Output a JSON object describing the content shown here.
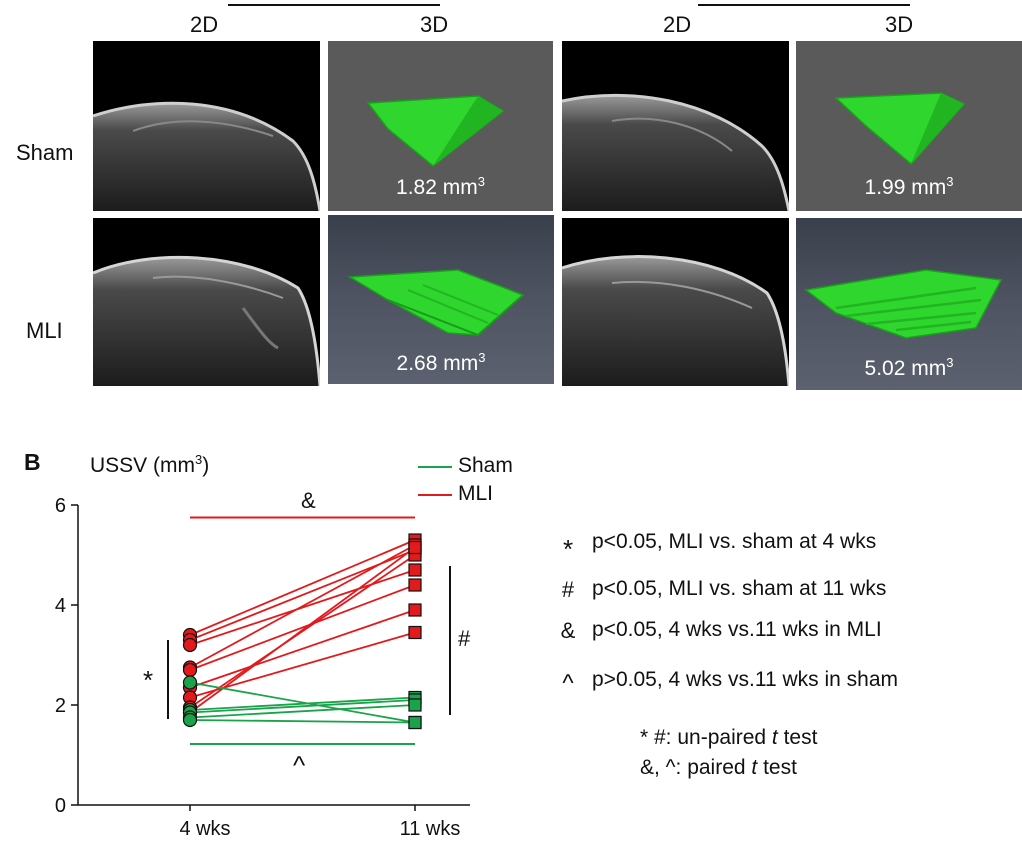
{
  "panel_a": {
    "col_headers": [
      "2D",
      "3D",
      "2D",
      "3D"
    ],
    "row_labels": [
      "Sham",
      "MLI"
    ],
    "volumes": [
      {
        "text": "1.82 mm",
        "sup": "3"
      },
      {
        "text": "1.99 mm",
        "sup": "3"
      },
      {
        "text": "2.68 mm",
        "sup": "3"
      },
      {
        "text": "5.02 mm",
        "sup": "3"
      }
    ]
  },
  "panel_b": {
    "letter": "B",
    "ylabel": "USSV (mm",
    "ylabel_sup": "3",
    "ylabel_close": ")",
    "legend": [
      {
        "name": "Sham",
        "color": "#1aa34a"
      },
      {
        "name": "MLI",
        "color": "#e31a1c"
      }
    ],
    "annotations": {
      "amp": "&",
      "star": "*",
      "hash": "#",
      "caret": "^"
    },
    "notes": [
      {
        "symbol": "*",
        "text": "p<0.05, MLI vs. sham at 4 wks"
      },
      {
        "symbol": "#",
        "text": "p<0.05, MLI vs. sham at 11 wks"
      },
      {
        "symbol": "&",
        "text": "p<0.05, 4 wks vs.11 wks in MLI"
      },
      {
        "symbol": "^",
        "text": "p>0.05, 4 wks vs.11 wks in sham"
      }
    ],
    "test_notes": {
      "line1_pre": "* #: un-paired ",
      "line1_t": "t",
      "line1_post": " test",
      "line2_pre": "&, ^: paired ",
      "line2_t": "t",
      "line2_post": " test"
    }
  },
  "chart_data": {
    "type": "line",
    "categories": [
      "4 wks",
      "11 wks"
    ],
    "ylim": [
      0,
      6
    ],
    "yticks": [
      0,
      2,
      4,
      6
    ],
    "series": [
      {
        "name": "MLI",
        "color": "#e31a1c",
        "marker_4wk": "circle",
        "marker_11wk": "square",
        "pairs": [
          [
            3.4,
            5.3
          ],
          [
            3.3,
            5.1
          ],
          [
            3.2,
            4.7
          ],
          [
            2.75,
            5.2
          ],
          [
            2.7,
            4.4
          ],
          [
            2.35,
            3.9
          ],
          [
            2.15,
            3.45
          ],
          [
            1.95,
            5.0
          ],
          [
            1.85,
            5.15
          ]
        ]
      },
      {
        "name": "Sham",
        "color": "#1aa34a",
        "marker_4wk": "circle",
        "marker_11wk": "square",
        "pairs": [
          [
            2.45,
            1.65
          ],
          [
            1.9,
            2.15
          ],
          [
            1.85,
            2.1
          ],
          [
            1.75,
            2.0
          ],
          [
            1.7,
            1.65
          ]
        ]
      }
    ]
  }
}
